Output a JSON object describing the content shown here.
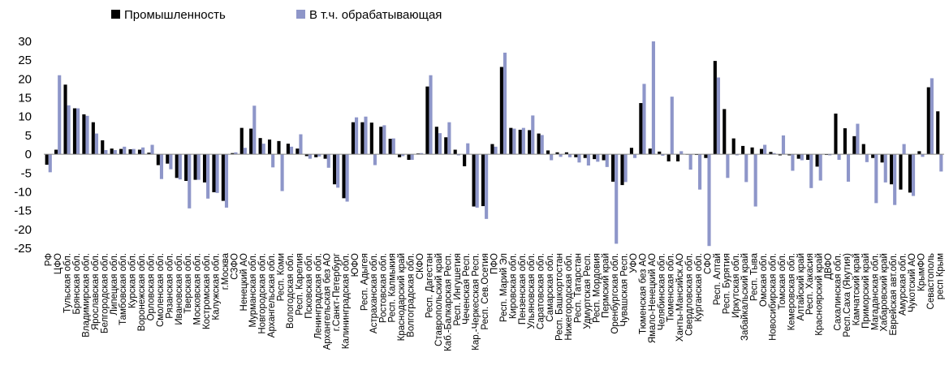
{
  "chart_data": {
    "type": "bar",
    "legend_position": "top-left",
    "grid": false,
    "ylim": [
      -25,
      30
    ],
    "yticks": [
      30,
      25,
      20,
      15,
      10,
      5,
      0,
      -5,
      -10,
      -15,
      -20,
      -25
    ],
    "colors": {
      "Промышленность": "#000000",
      "В т.ч. обрабатывающая": "#8e96c9"
    },
    "categories": [
      "РФ",
      "ЦФО",
      "Тульская обл.",
      "Брянская обл.",
      "Владимирская обл.",
      "Ярославская обл.",
      "Белгородская обл.",
      "Липецкая обл.",
      "Тамбовская обл.",
      "Курская обл.",
      "Воронежская обл.",
      "Орловская обл.",
      "Смоленская обл.",
      "Рязанская обл.",
      "Ивановская обл.",
      "Тверская обл.",
      "Московская обл.",
      "Костромская обл.",
      "Калужская обл.",
      "г.Москва",
      "СЗФО",
      "Ненецкий АО",
      "Мурманская обл.",
      "Новгородская обл.",
      "Архангельская обл.",
      "Респ. Коми",
      "Вологодская обл.",
      "Респ. Карелия",
      "Псковская обл.",
      "Ленинградская обл.",
      "Архангельская без АО",
      "г.Санкт-Петербург",
      "Калининградская обл.",
      "ЮФО",
      "Респ. Адыгея",
      "Астраханская обл.",
      "Ростовская обл.",
      "Респ. Калмыкия",
      "Краснодарский край",
      "Волгоградская обл.",
      "СКФО",
      "Респ. Дагестан",
      "Ставропольский край",
      "Каб.-Балкарская Респ.",
      "Респ. Ингушетия",
      "Чеченская Респ.",
      "Кар.-Черкесская Респ.",
      "Респ. Сев.Осетия",
      "ПФО",
      "Респ. Марий Эл",
      "Кировская обл.",
      "Пензенская обл.",
      "Ульяновская обл.",
      "Саратовская обл.",
      "Самарская обл.",
      "Респ. Башкортостан",
      "Нижегородская обл.",
      "Респ. Татарстан",
      "Удмуртская Респ.",
      "Респ. Мордовия",
      "Пермский край",
      "Оренбургская обл.",
      "Чувашская Респ.",
      "УФО",
      "Тюменская без АО",
      "Ямало-Ненецкий АО",
      "Челябинская обл.",
      "Тюменская обл.",
      "Ханты-Мансийск.АО",
      "Свердловская обл.",
      "Курганская обл.",
      "СФО",
      "Респ. Алтай",
      "Респ. Бурятия",
      "Иркутская обл.",
      "Забайкальский край",
      "Респ. Тыва",
      "Омская обл.",
      "Новосибирская обл.",
      "Томская обл.",
      "Кемеровская обл.",
      "Алтайский край",
      "Респ. Хакасия",
      "Красноярский край",
      "ДВФО",
      "Сахалинская обл.",
      "Респ.Саха (Якутия)",
      "Камчатский край",
      "Приморский край",
      "Магаданская обл.",
      "Хабаровский край",
      "Еврейская авт.обл.",
      "Амурская обл.",
      "Чукотский АО",
      "КрымФО",
      "Севастополь",
      "респ Крым"
    ],
    "series": [
      {
        "name": "Промышленность",
        "values": [
          -2.8,
          1.2,
          18.5,
          12.2,
          10.6,
          8.5,
          3.7,
          1.5,
          1.4,
          1.3,
          1.2,
          0.4,
          -2.9,
          -2.5,
          -6.3,
          -7.1,
          -6.8,
          -7.5,
          -10.1,
          -12.4,
          0.3,
          7.0,
          6.8,
          4.3,
          3.9,
          3.5,
          2.8,
          1.5,
          -0.5,
          -0.8,
          -1.2,
          -8.0,
          -11.7,
          8.5,
          8.5,
          8.4,
          7.3,
          4.1,
          -0.8,
          -1.5,
          0.2,
          18.0,
          7.3,
          4.5,
          1.2,
          -3.2,
          -13.9,
          -13.8,
          2.7,
          23.2,
          7.0,
          6.5,
          6.4,
          5.5,
          1.0,
          0.5,
          0.5,
          -0.8,
          -1.0,
          -1.3,
          -1.6,
          -7.3,
          -8.2,
          1.7,
          13.6,
          1.5,
          0.7,
          -1.9,
          -1.9,
          -0.1,
          -0.2,
          -1.0,
          24.8,
          12.0,
          4.2,
          2.2,
          1.8,
          1.4,
          0.6,
          -0.3,
          -0.3,
          -1.2,
          -1.5,
          -3.3,
          -0.2,
          10.8,
          6.9,
          4.8,
          2.7,
          -1.0,
          -2.2,
          -8.0,
          -9.4,
          -10.2,
          0.8,
          17.8,
          11.4
        ]
      },
      {
        "name": "В т.ч. обрабатывающая",
        "values": [
          -4.8,
          21.0,
          13.0,
          12.2,
          10.2,
          5.5,
          1.1,
          1.1,
          2.0,
          1.4,
          1.8,
          2.5,
          -6.6,
          -4.0,
          -6.7,
          -14.4,
          -6.8,
          -11.8,
          -10.3,
          -14.2,
          0.5,
          1.7,
          12.9,
          2.8,
          -3.5,
          -9.8,
          2.0,
          5.3,
          -1.2,
          -0.6,
          -3.6,
          -8.9,
          -12.6,
          9.8,
          10.0,
          -2.9,
          7.7,
          4.2,
          -0.5,
          -1.5,
          0.3,
          21.0,
          5.6,
          8.5,
          -0.3,
          2.9,
          -14.2,
          -17.2,
          2.0,
          27.0,
          6.8,
          7.0,
          10.3,
          5.1,
          -1.6,
          -0.7,
          -0.8,
          -2.2,
          -3.0,
          -2.0,
          -3.4,
          -23.8,
          -7.4,
          -1.0,
          18.7,
          30.0,
          -0.4,
          15.3,
          0.8,
          -4.1,
          -9.4,
          -24.4,
          20.4,
          -6.3,
          -0.3,
          -7.4,
          -13.9,
          2.5,
          0.3,
          5.0,
          -4.4,
          -1.6,
          -9.0,
          -7.0,
          -0.3,
          -1.5,
          -7.3,
          8.1,
          -2.1,
          -13.0,
          -7.5,
          -13.5,
          2.7,
          -11.1,
          -0.7,
          20.2,
          -4.6
        ]
      }
    ]
  }
}
